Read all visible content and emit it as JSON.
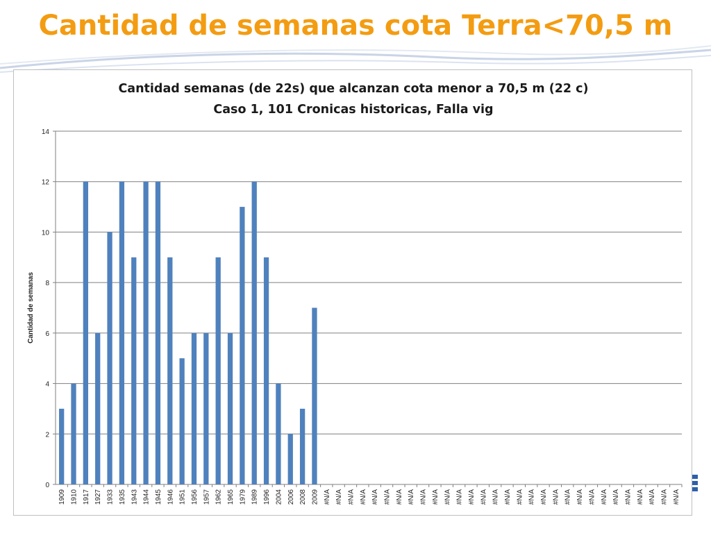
{
  "slide": {
    "title": "Cantidad de semanas cota Terra<70,5 m"
  },
  "colors": {
    "title": "#f39c12",
    "bar": "#4f81bd",
    "gridline": "#7f7f7f",
    "swoosh": "#c9d4e6"
  },
  "chart_data": {
    "type": "bar",
    "title": "Cantidad semanas (de 22s) que alcanzan cota menor a 70,5 m (22 c)",
    "subtitle": "Caso  1, 101 Cronicas historicas, Falla vig",
    "xlabel": "",
    "ylabel": "Cantidad de semanas",
    "ylim": [
      0,
      14
    ],
    "yticks": [
      0,
      2,
      4,
      6,
      8,
      10,
      12,
      14
    ],
    "grid": true,
    "legend": "none",
    "categories": [
      "1909",
      "1910",
      "1917",
      "1927",
      "1933",
      "1935",
      "1943",
      "1944",
      "1945",
      "1946",
      "1951",
      "1956",
      "1957",
      "1962",
      "1965",
      "1979",
      "1989",
      "1996",
      "2004",
      "2006",
      "2008",
      "2009",
      "#N/A",
      "#N/A",
      "#N/A",
      "#N/A",
      "#N/A",
      "#N/A",
      "#N/A",
      "#N/A",
      "#N/A",
      "#N/A",
      "#N/A",
      "#N/A",
      "#N/A",
      "#N/A",
      "#N/A",
      "#N/A",
      "#N/A",
      "#N/A",
      "#N/A",
      "#N/A",
      "#N/A",
      "#N/A",
      "#N/A",
      "#N/A",
      "#N/A",
      "#N/A",
      "#N/A",
      "#N/A",
      "#N/A",
      "#N/A"
    ],
    "values": [
      3,
      4,
      12,
      6,
      10,
      12,
      9,
      12,
      12,
      9,
      5,
      6,
      6,
      9,
      6,
      11,
      12,
      9,
      4,
      2,
      3,
      7,
      null,
      null,
      null,
      null,
      null,
      null,
      null,
      null,
      null,
      null,
      null,
      null,
      null,
      null,
      null,
      null,
      null,
      null,
      null,
      null,
      null,
      null,
      null,
      null,
      null,
      null,
      null,
      null,
      null,
      null
    ]
  }
}
